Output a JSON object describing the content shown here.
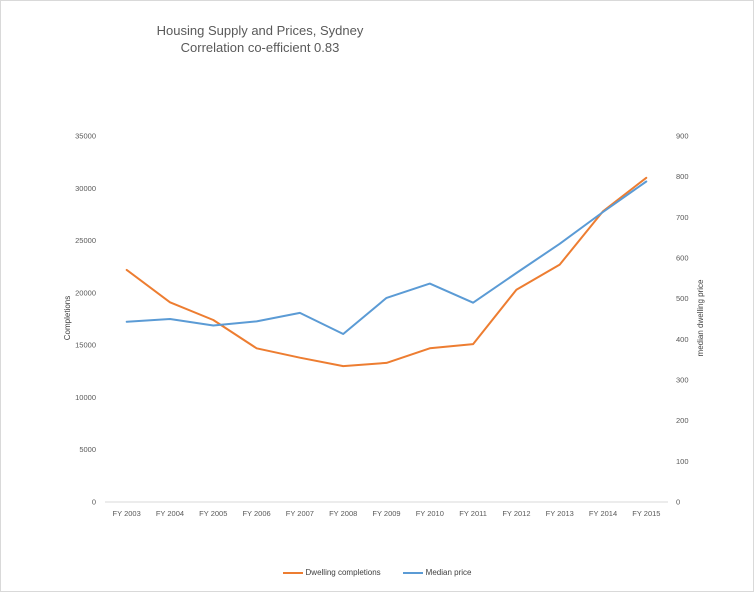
{
  "chart_data": {
    "type": "line",
    "title": "Housing Supply and Prices, Sydney",
    "subtitle": "Correlation co-efficient 0.83",
    "categories": [
      "FY 2003",
      "FY 2004",
      "FY 2005",
      "FY 2006",
      "FY 2007",
      "FY 2008",
      "FY 2009",
      "FY 2010",
      "FY 2011",
      "FY 2012",
      "FY 2013",
      "FY 2014",
      "FY 2015"
    ],
    "ylabel_left": "Completions",
    "ylabel_right": "median dwelling price",
    "ylim_left": [
      0,
      35000
    ],
    "ylim_right": [
      0,
      900
    ],
    "yticks_left": [
      "35000",
      "30000",
      "25000",
      "20000",
      "15000",
      "10000",
      "5000",
      "0"
    ],
    "yticks_right": [
      "900",
      "800",
      "700",
      "600",
      "500",
      "400",
      "300",
      "200",
      "100",
      "0"
    ],
    "series": [
      {
        "name": "Dwelling completions",
        "axis": "left",
        "color": "#ED7D31",
        "values": [
          22200,
          19100,
          17400,
          14700,
          13800,
          13000,
          13300,
          14700,
          15100,
          20300,
          22700,
          27800,
          31000
        ]
      },
      {
        "name": "Median price",
        "axis": "right",
        "color": "#5B9BD5",
        "values": [
          443,
          450,
          434,
          444,
          465,
          413,
          502,
          537,
          490,
          563,
          635,
          713,
          788
        ]
      }
    ],
    "grid": false,
    "legend_position": "bottom"
  }
}
